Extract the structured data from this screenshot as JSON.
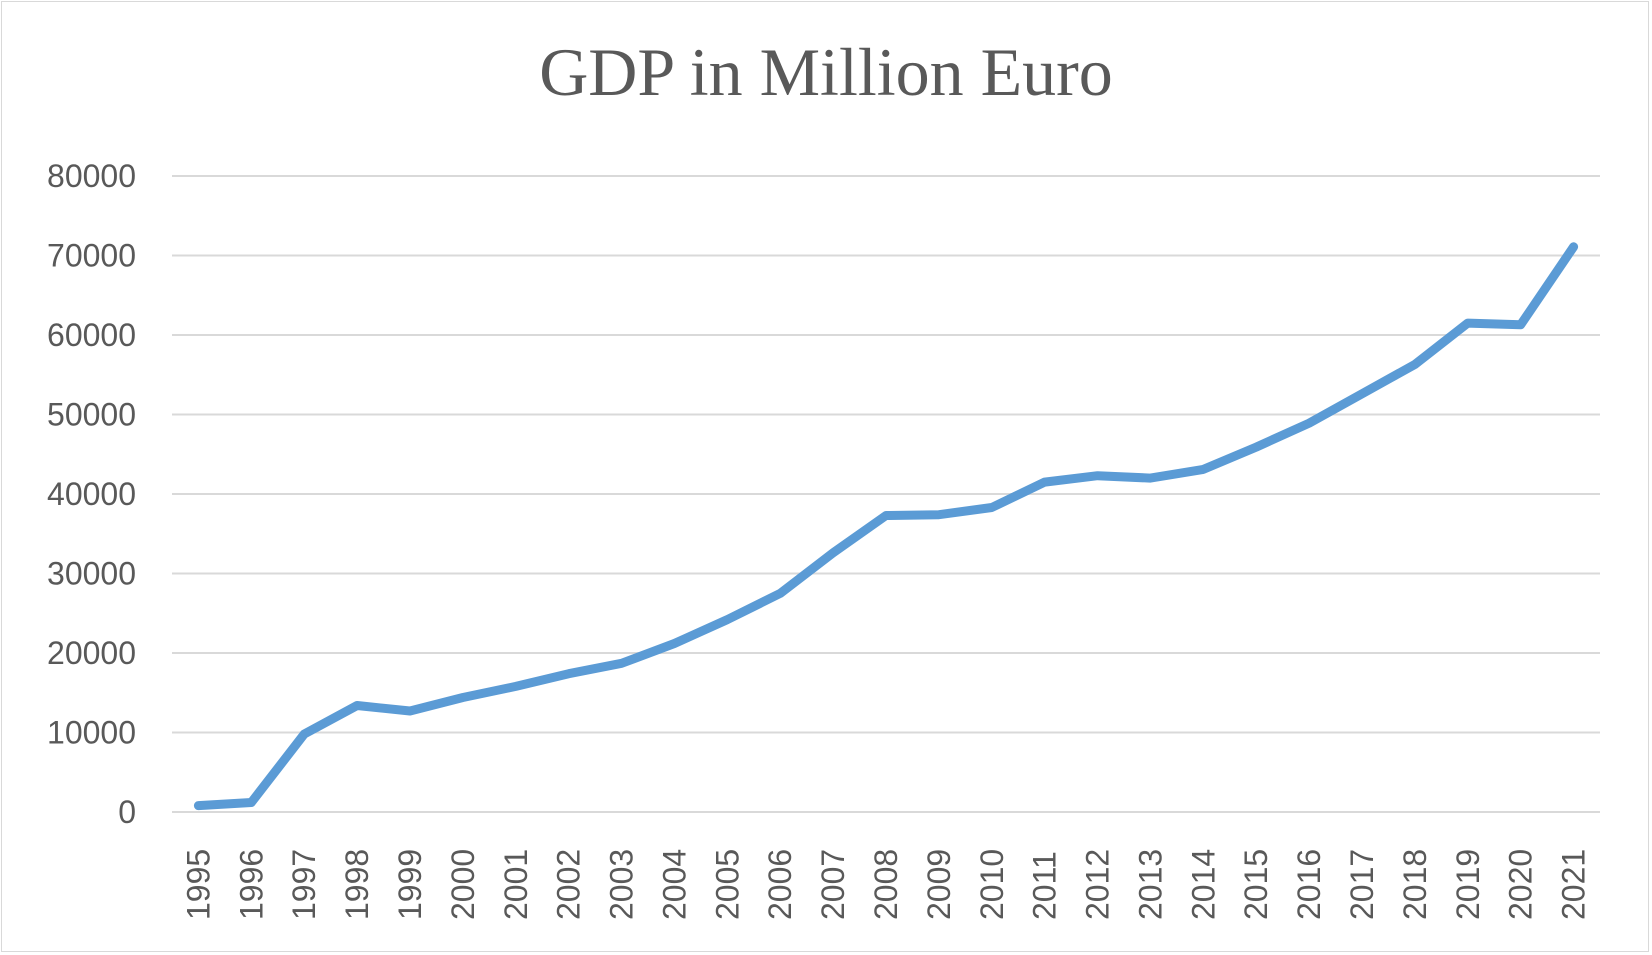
{
  "chart_data": {
    "type": "line",
    "title": "GDP in Million Euro",
    "xlabel": "",
    "ylabel": "",
    "ylim": [
      0,
      80000
    ],
    "yticks": [
      0,
      10000,
      20000,
      30000,
      40000,
      50000,
      60000,
      70000,
      80000
    ],
    "categories": [
      "1995",
      "1996",
      "1997",
      "1998",
      "1999",
      "2000",
      "2001",
      "2002",
      "2003",
      "2004",
      "2005",
      "2006",
      "2007",
      "2008",
      "2009",
      "2010",
      "2011",
      "2012",
      "2013",
      "2014",
      "2015",
      "2016",
      "2017",
      "2018",
      "2019",
      "2020",
      "2021"
    ],
    "series": [
      {
        "name": "",
        "color": "#5b9bd5",
        "values": [
          800,
          1200,
          9800,
          13400,
          12700,
          14400,
          15800,
          17400,
          18700,
          21200,
          24200,
          27500,
          32600,
          37300,
          37400,
          38300,
          41500,
          42300,
          42000,
          43100,
          45900,
          48900,
          52600,
          56300,
          61500,
          61300,
          71100
        ]
      }
    ],
    "grid": true,
    "legend": "none"
  }
}
